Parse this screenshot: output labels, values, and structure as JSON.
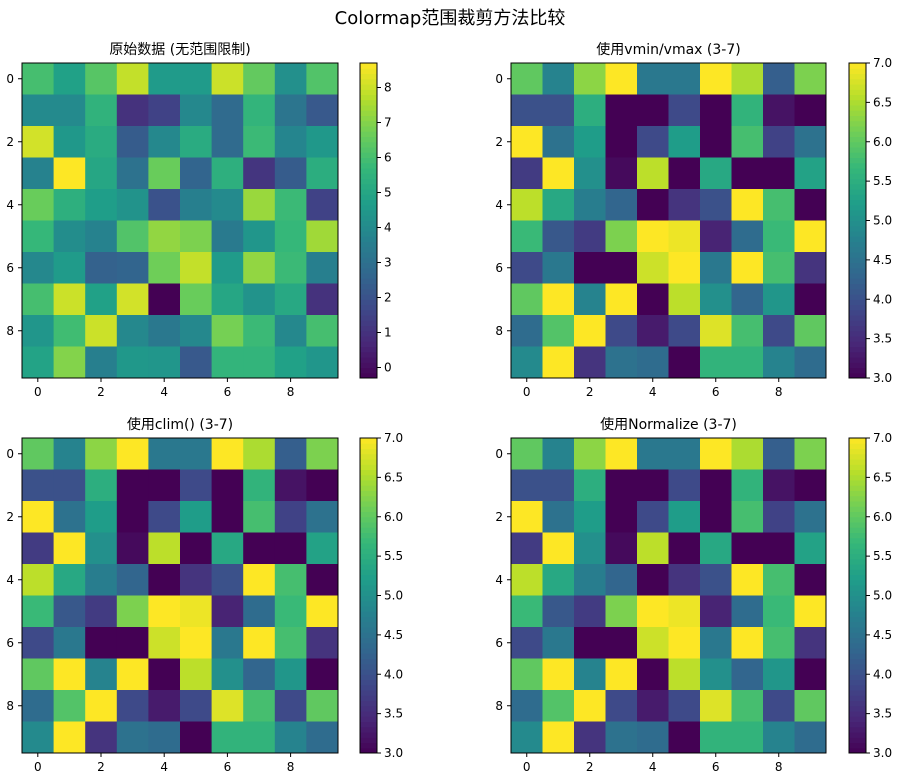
{
  "title": "Colormap范围裁剪方法比较",
  "chart_data": [
    {
      "type": "heatmap",
      "title": "原始数据 (无范围限制)",
      "colormap": "viridis",
      "clim": [
        -0.3,
        8.7
      ],
      "x_ticks": [
        "0",
        "2",
        "4",
        "6",
        "8"
      ],
      "y_ticks": [
        "0",
        "2",
        "4",
        "6",
        "8"
      ],
      "colorbar_ticks": [
        "0",
        "1",
        "2",
        "3",
        "4",
        "5",
        "6",
        "7",
        "8"
      ],
      "colorbar_tick_values": [
        0,
        1,
        2,
        3,
        4,
        5,
        6,
        7,
        8
      ]
    },
    {
      "type": "heatmap",
      "title": "使用vmin/vmax (3-7)",
      "colormap": "viridis",
      "clim": [
        3,
        7
      ],
      "x_ticks": [
        "0",
        "2",
        "4",
        "6",
        "8"
      ],
      "y_ticks": [
        "0",
        "2",
        "4",
        "6",
        "8"
      ],
      "colorbar_ticks": [
        "3.0",
        "3.5",
        "4.0",
        "4.5",
        "5.0",
        "5.5",
        "6.0",
        "6.5",
        "7.0"
      ],
      "colorbar_tick_values": [
        3,
        3.5,
        4,
        4.5,
        5,
        5.5,
        6,
        6.5,
        7
      ]
    },
    {
      "type": "heatmap",
      "title": "使用clim() (3-7)",
      "colormap": "viridis",
      "clim": [
        3,
        7
      ],
      "x_ticks": [
        "0",
        "2",
        "4",
        "6",
        "8"
      ],
      "y_ticks": [
        "0",
        "2",
        "4",
        "6",
        "8"
      ],
      "colorbar_ticks": [
        "3.0",
        "3.5",
        "4.0",
        "4.5",
        "5.0",
        "5.5",
        "6.0",
        "6.5",
        "7.0"
      ],
      "colorbar_tick_values": [
        3,
        3.5,
        4,
        4.5,
        5,
        5.5,
        6,
        6.5,
        7
      ]
    },
    {
      "type": "heatmap",
      "title": "使用Normalize (3-7)",
      "colormap": "viridis",
      "clim": [
        3,
        7
      ],
      "x_ticks": [
        "0",
        "2",
        "4",
        "6",
        "8"
      ],
      "y_ticks": [
        "0",
        "2",
        "4",
        "6",
        "8"
      ],
      "colorbar_ticks": [
        "3.0",
        "3.5",
        "4.0",
        "4.5",
        "5.0",
        "5.5",
        "6.0",
        "6.5",
        "7.0"
      ],
      "colorbar_tick_values": [
        3,
        3.5,
        4,
        4.5,
        5,
        5.5,
        6,
        6.5,
        7
      ]
    }
  ],
  "matrix": [
    [
      6.0,
      4.8,
      6.3,
      7.9,
      4.6,
      4.6,
      8.0,
      6.5,
      4.2,
      6.2
    ],
    [
      4.0,
      4.0,
      5.5,
      1.0,
      1.5,
      3.9,
      2.8,
      5.6,
      3.2,
      2.2
    ],
    [
      8.1,
      4.5,
      5.2,
      2.3,
      3.9,
      5.2,
      2.8,
      5.8,
      3.8,
      4.5
    ],
    [
      3.7,
      8.7,
      5.0,
      3.1,
      6.6,
      2.6,
      5.4,
      1.1,
      2.3,
      5.3
    ],
    [
      6.6,
      5.4,
      4.7,
      4.3,
      2.0,
      3.6,
      4.0,
      7.3,
      5.8,
      1.5
    ],
    [
      5.7,
      4.1,
      3.7,
      6.2,
      7.2,
      6.9,
      3.4,
      4.4,
      5.7,
      7.4
    ],
    [
      3.9,
      4.6,
      2.5,
      2.6,
      6.7,
      7.9,
      4.6,
      7.2,
      5.8,
      3.6
    ],
    [
      6.0,
      8.0,
      4.8,
      8.1,
      -0.3,
      6.6,
      5.0,
      4.3,
      5.1,
      1.0
    ],
    [
      4.4,
      5.9,
      8.0,
      3.9,
      3.3,
      3.9,
      6.8,
      5.8,
      3.9,
      6.0
    ],
    [
      4.9,
      7.0,
      3.6,
      4.5,
      4.4,
      2.2,
      5.6,
      5.6,
      4.8,
      4.4
    ]
  ],
  "x_tick_values": [
    0,
    2,
    4,
    6,
    8
  ],
  "y_tick_values": [
    0,
    2,
    4,
    6,
    8
  ]
}
